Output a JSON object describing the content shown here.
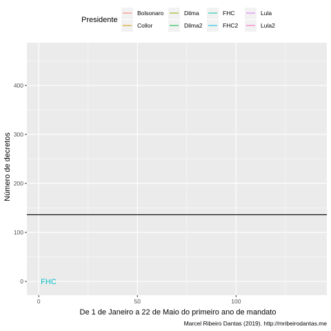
{
  "chart_data": {
    "type": "line",
    "xlabel": "De 1 de Janeiro a 22 de Maio do primeiro ano de mandato",
    "ylabel": "Número de decretos",
    "caption": "Marcel Ribeiro Dantas (2019). http://mribeirodantas.me",
    "xlim": [
      -6,
      146
    ],
    "ylim": [
      -28,
      487
    ],
    "x_ticks": [
      0,
      50,
      100
    ],
    "y_ticks": [
      0,
      100,
      200,
      300,
      400
    ],
    "grid": true,
    "legend": {
      "title": "Presidente",
      "placement": "top",
      "entries": [
        {
          "name": "Bolsonaro",
          "color": "#F8766D"
        },
        {
          "name": "Collor",
          "color": "#D39200"
        },
        {
          "name": "Dilma",
          "color": "#93AA00"
        },
        {
          "name": "Dilma2",
          "color": "#00BA38"
        },
        {
          "name": "FHC",
          "color": "#00C19F"
        },
        {
          "name": "FHC2",
          "color": "#00B9E3"
        },
        {
          "name": "Lula",
          "color": "#DB72FB"
        },
        {
          "name": "Lula2",
          "color": "#FF61C3"
        }
      ]
    },
    "reference_line": {
      "y": 136,
      "color": "#000000"
    },
    "annotations": [
      {
        "text": "FHC",
        "x": 5,
        "y": 0,
        "color": "#00BFC4"
      }
    ]
  }
}
